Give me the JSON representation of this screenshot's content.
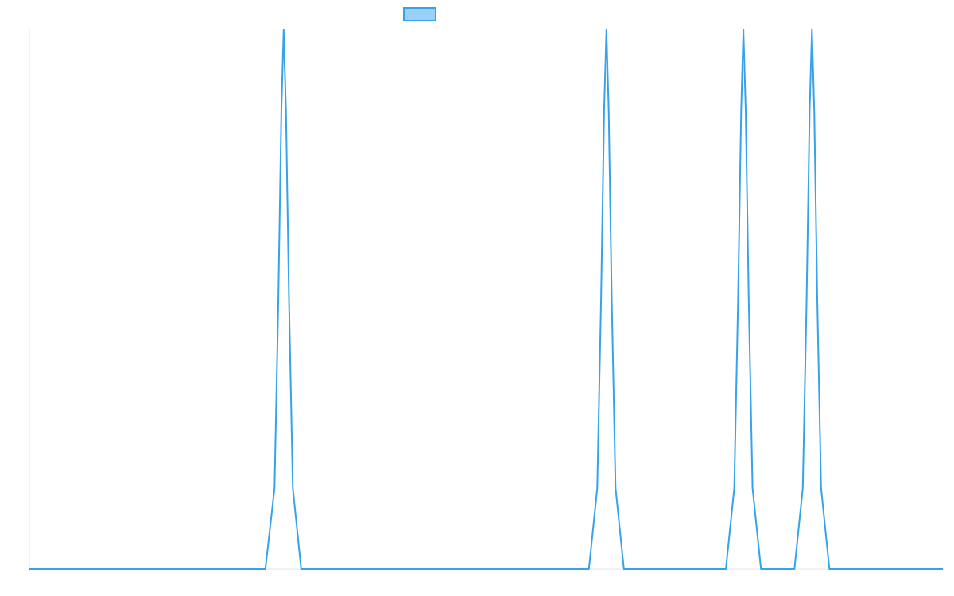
{
  "chart_data": {
    "type": "line",
    "title": "",
    "xlabel": "",
    "ylabel": "",
    "legend": {
      "placement": "top-center",
      "entries": [
        {
          "name": "",
          "color": "#36a2eb",
          "fill": "#9ad0f5"
        }
      ]
    },
    "grid": false,
    "xlim": [
      0,
      1200
    ],
    "ylim": [
      0,
      1
    ],
    "series": [
      {
        "name": "",
        "color": "#36a2eb",
        "points": [
          [
            0,
            0
          ],
          [
            310,
            0
          ],
          [
            322,
            0.15
          ],
          [
            327,
            0.5
          ],
          [
            331,
            0.85
          ],
          [
            334,
            1
          ],
          [
            337,
            0.85
          ],
          [
            341,
            0.5
          ],
          [
            346,
            0.15
          ],
          [
            357,
            0
          ],
          [
            735,
            0
          ],
          [
            746,
            0.15
          ],
          [
            751,
            0.5
          ],
          [
            755,
            0.85
          ],
          [
            758,
            1
          ],
          [
            761,
            0.85
          ],
          [
            765,
            0.5
          ],
          [
            770,
            0.15
          ],
          [
            781,
            0
          ],
          [
            915,
            0
          ],
          [
            926,
            0.15
          ],
          [
            931,
            0.5
          ],
          [
            935,
            0.85
          ],
          [
            938,
            1
          ],
          [
            941,
            0.85
          ],
          [
            945,
            0.5
          ],
          [
            950,
            0.15
          ],
          [
            961,
            0
          ],
          [
            1005,
            0
          ],
          [
            1016,
            0.15
          ],
          [
            1021,
            0.5
          ],
          [
            1025,
            0.85
          ],
          [
            1028,
            1
          ],
          [
            1031,
            0.85
          ],
          [
            1035,
            0.5
          ],
          [
            1040,
            0.15
          ],
          [
            1051,
            0
          ],
          [
            1200,
            0
          ]
        ]
      }
    ]
  }
}
